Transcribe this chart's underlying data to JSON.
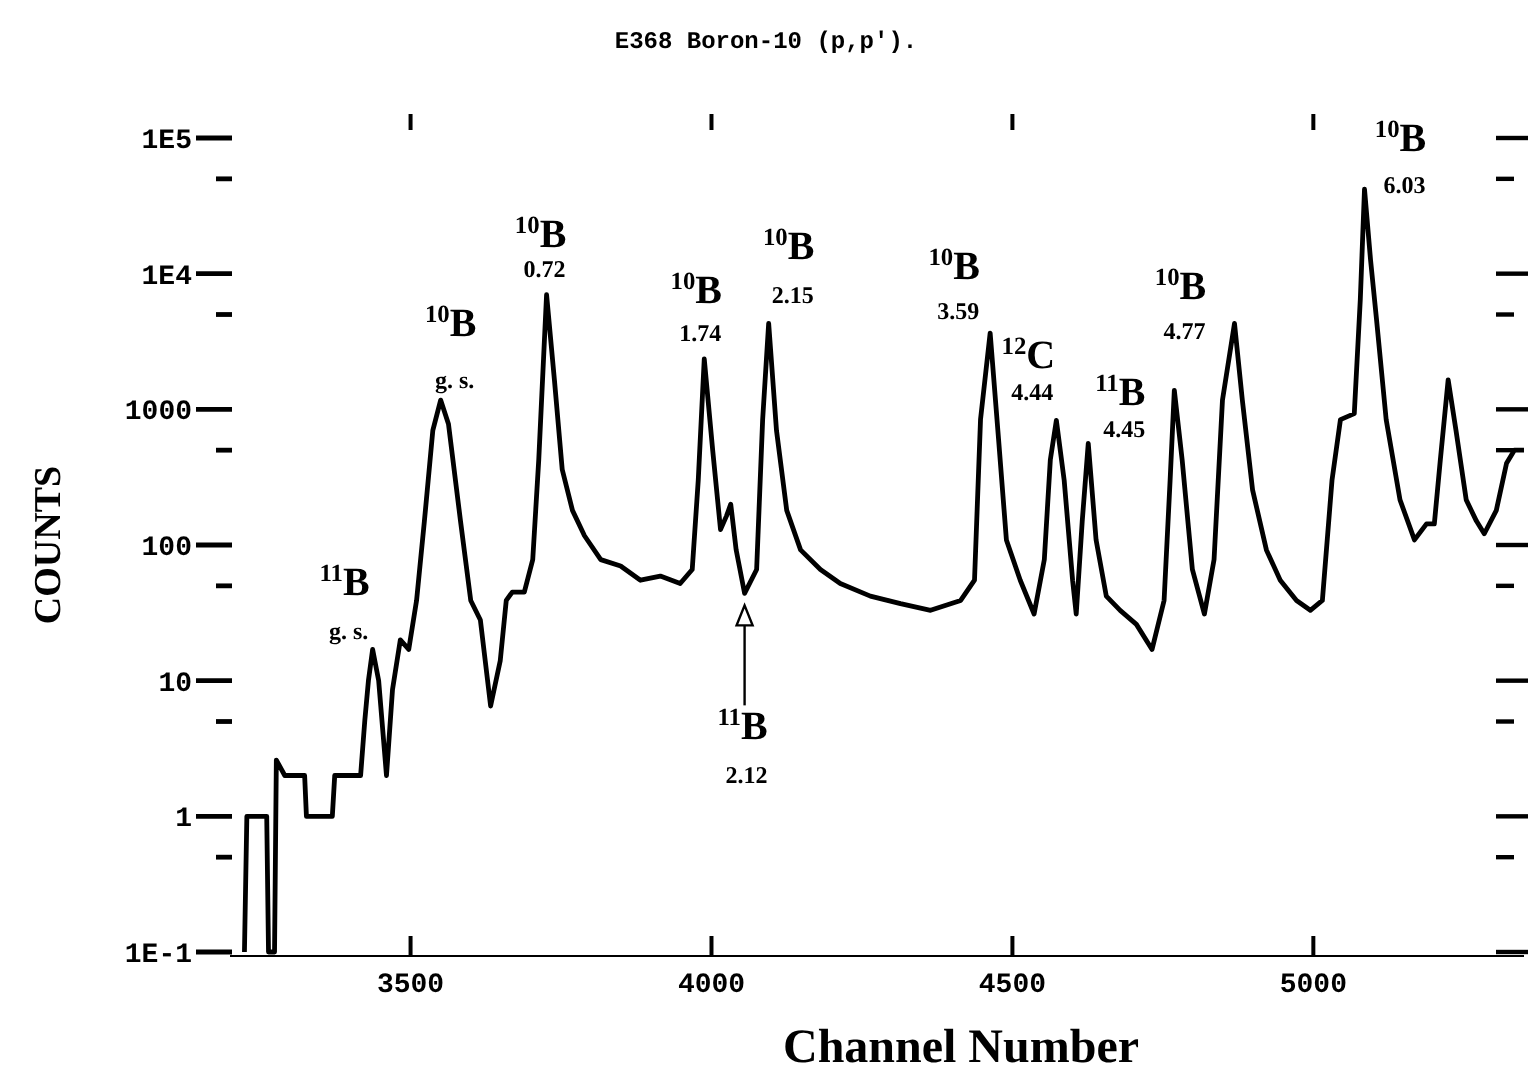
{
  "chart_data": {
    "type": "line",
    "title": "E368 Boron-10 (p,p′).",
    "xlabel": "Channel Number",
    "ylabel": "COUNTS",
    "log": true,
    "grid": false,
    "marker": "none",
    "line_style": "solid",
    "xlim": [
      3200,
      5350
    ],
    "xticks": [
      3500,
      4000,
      4500,
      5000
    ],
    "ylim": [
      0.1,
      100000
    ],
    "yticks": [
      {
        "value": 100000,
        "label": "1E5"
      },
      {
        "value": 50000,
        "label": null
      },
      {
        "value": 10000,
        "label": "1E4"
      },
      {
        "value": 5000,
        "label": null
      },
      1000,
      {
        "value": 500,
        "label": null
      },
      100,
      {
        "value": 50,
        "label": null
      },
      10,
      {
        "value": 5,
        "label": null
      },
      1,
      {
        "value": 0.5,
        "label": null
      },
      {
        "value": 0.1,
        "label": "1E-1"
      }
    ],
    "series": [
      {
        "color": "#000000",
        "x": [
          3224,
          3228,
          3261,
          3264,
          3274,
          3277,
          3291,
          3324,
          3327,
          3370,
          3374,
          3400,
          3417,
          3424,
          3430,
          3437,
          3447,
          3460,
          3470,
          3483,
          3497,
          3510,
          3523,
          3537,
          3550,
          3563,
          3583,
          3600,
          3616,
          3633,
          3649,
          3659,
          3669,
          3689,
          3703,
          3713,
          3726,
          3739,
          3752,
          3769,
          3789,
          3816,
          3849,
          3882,
          3915,
          3948,
          3968,
          3978,
          3988,
          4002,
          4015,
          4025,
          4032,
          4041,
          4055,
          4075,
          4085,
          4095,
          4108,
          4125,
          4148,
          4181,
          4214,
          4264,
          4314,
          4364,
          4414,
          4437,
          4447,
          4463,
          4477,
          4490,
          4513,
          4536,
          4553,
          4563,
          4573,
          4586,
          4600,
          4606,
          4616,
          4626,
          4639,
          4656,
          4679,
          4706,
          4732,
          4752,
          4762,
          4769,
          4782,
          4799,
          4819,
          4835,
          4849,
          4869,
          4882,
          4899,
          4922,
          4945,
          4972,
          4995,
          5015,
          5031,
          5045,
          5068,
          5078,
          5085,
          5095,
          5105,
          5121,
          5144,
          5168,
          5188,
          5201,
          5211,
          5224,
          5237,
          5254,
          5271,
          5284,
          5304,
          5321,
          5334,
          5350
        ],
        "values": [
          0.1,
          1,
          1,
          0.1,
          0.1,
          2.6,
          2,
          2,
          1,
          1,
          2,
          2,
          2,
          5.1,
          10,
          17,
          10,
          2,
          8.6,
          20,
          17,
          39,
          150,
          700,
          1170,
          780,
          150,
          39,
          28,
          6.5,
          14,
          39,
          45,
          45,
          78,
          425,
          7000,
          1650,
          360,
          180,
          117,
          78,
          70,
          55,
          59,
          52,
          66,
          300,
          2350,
          500,
          130,
          164,
          200,
          92,
          44,
          66,
          840,
          4300,
          700,
          180,
          92,
          66,
          52,
          42,
          37,
          33,
          39,
          55,
          840,
          3650,
          600,
          109,
          55,
          31,
          78,
          425,
          830,
          300,
          55,
          31,
          150,
          560,
          109,
          42,
          33,
          26,
          17,
          39,
          300,
          1380,
          425,
          66,
          31,
          78,
          1170,
          4300,
          1170,
          255,
          92,
          55,
          39,
          33,
          39,
          300,
          840,
          930,
          6430,
          42000,
          12700,
          4580,
          840,
          215,
          109,
          143,
          143,
          425,
          1650,
          700,
          215,
          150,
          121,
          180,
          400,
          500,
          500
        ]
      }
    ],
    "annotations": [
      {
        "text": "$^{11}$B\ng. s.",
        "x": 3437,
        "y": 17
      },
      {
        "text": "$^{10}$B\ng. s.",
        "x": 3550,
        "y": 1170
      },
      {
        "text": "$^{10}$B\n0.72",
        "x": 3726,
        "y": 7000
      },
      {
        "text": "$^{10}$B\n1.74",
        "x": 3988,
        "y": 2350
      },
      {
        "text": "$^{11}$B\n2.12",
        "x": 4055,
        "y": 44
      },
      {
        "text": "$^{10}$B\n2.15",
        "x": 4095,
        "y": 4300
      },
      {
        "text": "$^{10}$B\n3.59",
        "x": 4463,
        "y": 3650
      },
      {
        "text": "$^{12}$C\n4.44",
        "x": 4573,
        "y": 830
      },
      {
        "text": "$^{11}$B\n4.45",
        "x": 4626,
        "y": 560
      },
      {
        "text": "$^{10}$B\n4.77",
        "x": 4869,
        "y": 4300
      },
      {
        "text": "$^{10}$B\n6.03",
        "x": 5085,
        "y": 42000
      }
    ]
  }
}
